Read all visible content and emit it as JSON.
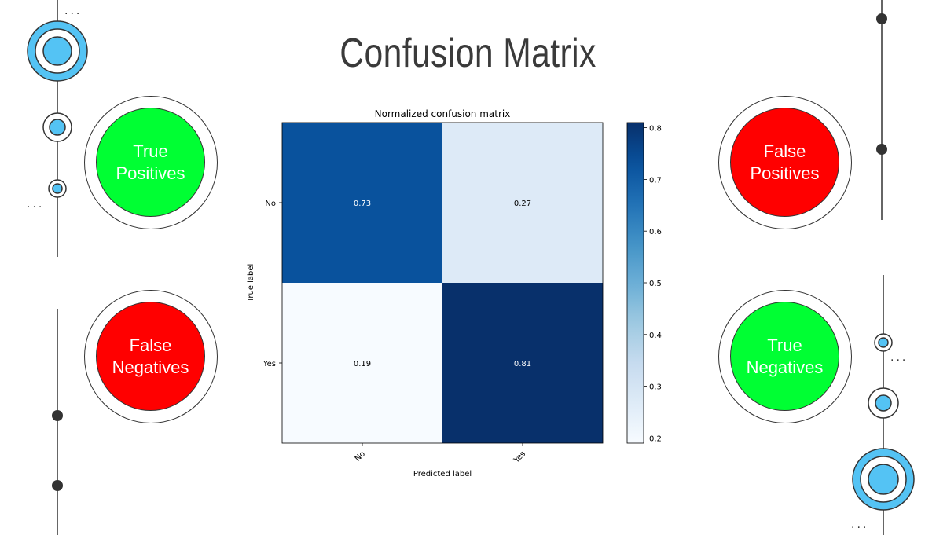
{
  "slide": {
    "title": "Confusion Matrix"
  },
  "badges": {
    "tp": {
      "line1": "True",
      "line2": "Positives",
      "color": "#00ff33"
    },
    "fp": {
      "line1": "False",
      "line2": "Positives",
      "color": "#ff0000"
    },
    "fn": {
      "line1": "False",
      "line2": "Negatives",
      "color": "#ff0000"
    },
    "tn": {
      "line1": "True",
      "line2": "Negatives",
      "color": "#00ff33"
    }
  },
  "decor": {
    "ellipsis": "...",
    "accent": "#54c3f4"
  },
  "chart_data": {
    "type": "heatmap",
    "title": "Normalized confusion matrix",
    "xlabel": "Predicted label",
    "ylabel": "True label",
    "x_categories": [
      "No",
      "Yes"
    ],
    "y_categories": [
      "No",
      "Yes"
    ],
    "values": [
      [
        0.73,
        0.27
      ],
      [
        0.19,
        0.81
      ]
    ],
    "value_labels": [
      [
        "0.73",
        "0.27"
      ],
      [
        "0.19",
        "0.81"
      ]
    ],
    "colormap": "Blues",
    "colorbar": {
      "range": [
        0.19,
        0.81
      ],
      "ticks": [
        "0.8",
        "0.7",
        "0.6",
        "0.5",
        "0.4",
        "0.3",
        "0.2"
      ],
      "tick_values": [
        0.8,
        0.7,
        0.6,
        0.5,
        0.4,
        0.3,
        0.2
      ]
    },
    "grid": false
  }
}
